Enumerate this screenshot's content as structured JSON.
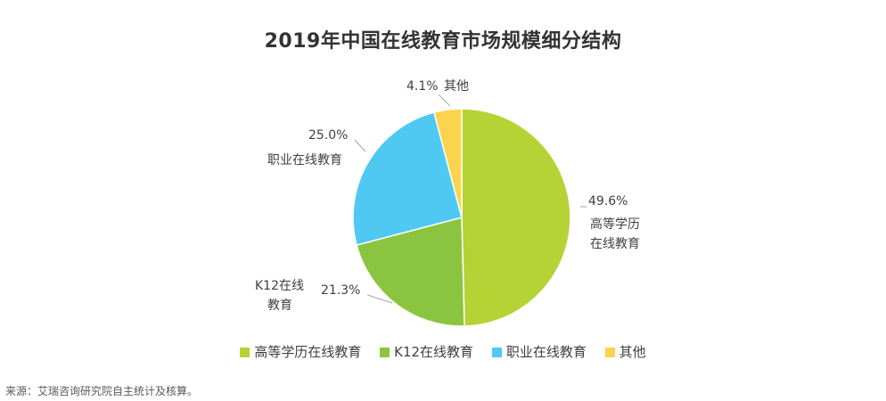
{
  "chart_data": {
    "type": "pie",
    "title": "2019年中国在线教育市场规模细分结构",
    "slices": [
      {
        "label": "高等学历在线教育",
        "value": 49.6,
        "display": "49.6%",
        "label_lines": [
          "高等学历",
          "在线教育"
        ],
        "color": "#b5d334"
      },
      {
        "label": "K12在线教育",
        "value": 21.3,
        "display": "21.3%",
        "label_lines": [
          "K12在线",
          "教育"
        ],
        "color": "#8bc540"
      },
      {
        "label": "职业在线教育",
        "value": 25.0,
        "display": "25.0%",
        "label_lines": [
          "职业在线教育"
        ],
        "color": "#4fc9f1"
      },
      {
        "label": "其他",
        "value": 4.1,
        "display": "4.1%",
        "label_lines": [
          "其他"
        ],
        "color": "#fcd34d"
      }
    ],
    "legend_position": "bottom",
    "start_angle_deg": 0,
    "direction": "clockwise"
  },
  "source": "来源：艾瑞咨询研究院自主统计及核算。"
}
